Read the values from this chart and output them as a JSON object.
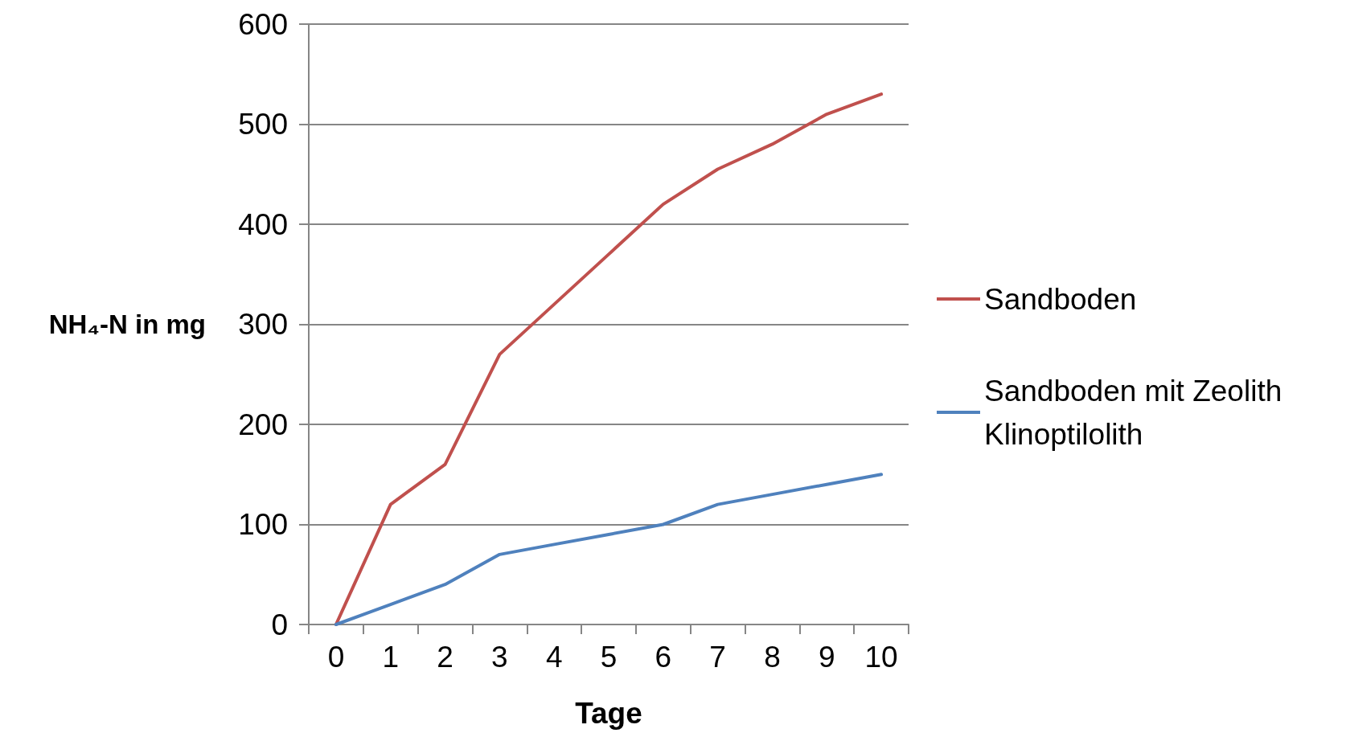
{
  "chart_data": {
    "type": "line",
    "xlabel": "Tage",
    "ylabel": "NH₄-N in mg",
    "categories": [
      "0",
      "1",
      "2",
      "3",
      "4",
      "5",
      "6",
      "7",
      "8",
      "9",
      "10"
    ],
    "series": [
      {
        "name": "Sandboden",
        "color": "#c0504d",
        "values": [
          0,
          120,
          160,
          270,
          320,
          370,
          420,
          455,
          480,
          510,
          530
        ]
      },
      {
        "name": "Sandboden mit Zeolith Klinoptilolith",
        "color": "#4f81bd",
        "values": [
          0,
          20,
          40,
          70,
          80,
          90,
          100,
          120,
          130,
          140,
          150
        ]
      }
    ],
    "ylim": [
      0,
      600
    ],
    "yticks": [
      0,
      100,
      200,
      300,
      400,
      500,
      600
    ],
    "grid": "y",
    "legend": "right",
    "marker": "none",
    "line_style": "solid"
  }
}
